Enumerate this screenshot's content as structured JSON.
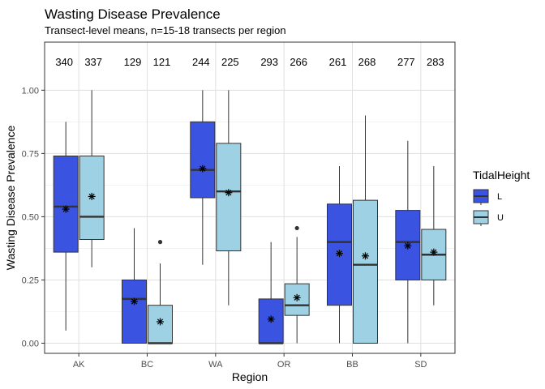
{
  "chart_data": {
    "type": "boxplot",
    "title": "Wasting Disease Prevalence",
    "subtitle": "Transect-level means, n=15-18 transects per region",
    "xlabel": "Region",
    "ylabel": "Wasting Disease Prevalence",
    "ylim": [
      -0.04,
      1.19
    ],
    "yticks": [
      0.0,
      0.25,
      0.5,
      0.75,
      1.0
    ],
    "ytick_labels": [
      "0.00",
      "0.25",
      "0.50",
      "0.75",
      "1.00"
    ],
    "grid": true,
    "legend": {
      "title": "TidalHeight",
      "position": "right",
      "items": [
        {
          "key": "L",
          "label": "L",
          "color": "#3A53E0"
        },
        {
          "key": "U",
          "label": "U",
          "color": "#9ED1E3"
        }
      ]
    },
    "categories": [
      "AK",
      "BC",
      "WA",
      "OR",
      "BB",
      "SD"
    ],
    "boxes": [
      {
        "region": "AK",
        "group": "L",
        "min": 0.05,
        "q1": 0.36,
        "median": 0.54,
        "q3": 0.74,
        "max": 0.875,
        "mean": 0.53,
        "outliers": [],
        "count": "340"
      },
      {
        "region": "AK",
        "group": "U",
        "min": 0.3,
        "q1": 0.41,
        "median": 0.5,
        "q3": 0.74,
        "max": 1.0,
        "mean": 0.58,
        "outliers": [],
        "count": "337"
      },
      {
        "region": "BC",
        "group": "L",
        "min": 0.0,
        "q1": 0.0,
        "median": 0.175,
        "q3": 0.25,
        "max": 0.455,
        "mean": 0.165,
        "outliers": [],
        "count": "129"
      },
      {
        "region": "BC",
        "group": "U",
        "min": 0.0,
        "q1": 0.0,
        "median": 0.0,
        "q3": 0.15,
        "max": 0.315,
        "mean": 0.085,
        "outliers": [
          0.4
        ],
        "count": "121"
      },
      {
        "region": "WA",
        "group": "L",
        "min": 0.31,
        "q1": 0.575,
        "median": 0.685,
        "q3": 0.875,
        "max": 1.0,
        "mean": 0.69,
        "outliers": [],
        "count": "244"
      },
      {
        "region": "WA",
        "group": "U",
        "min": 0.15,
        "q1": 0.365,
        "median": 0.6,
        "q3": 0.79,
        "max": 1.0,
        "mean": 0.595,
        "outliers": [],
        "count": "225"
      },
      {
        "region": "OR",
        "group": "L",
        "min": 0.0,
        "q1": 0.0,
        "median": 0.0,
        "q3": 0.175,
        "max": 0.4,
        "mean": 0.095,
        "outliers": [],
        "count": "293"
      },
      {
        "region": "OR",
        "group": "U",
        "min": 0.0,
        "q1": 0.11,
        "median": 0.15,
        "q3": 0.235,
        "max": 0.42,
        "mean": 0.18,
        "outliers": [
          0.455
        ],
        "count": "266"
      },
      {
        "region": "BB",
        "group": "L",
        "min": 0.0,
        "q1": 0.15,
        "median": 0.4,
        "q3": 0.55,
        "max": 0.7,
        "mean": 0.355,
        "outliers": [],
        "count": "261"
      },
      {
        "region": "BB",
        "group": "U",
        "min": 0.0,
        "q1": 0.0,
        "median": 0.31,
        "q3": 0.565,
        "max": 0.9,
        "mean": 0.345,
        "outliers": [],
        "count": "268"
      },
      {
        "region": "SD",
        "group": "L",
        "min": 0.0,
        "q1": 0.25,
        "median": 0.4,
        "q3": 0.525,
        "max": 0.8,
        "mean": 0.385,
        "outliers": [],
        "count": "277"
      },
      {
        "region": "SD",
        "group": "U",
        "min": 0.15,
        "q1": 0.25,
        "median": 0.35,
        "q3": 0.45,
        "max": 0.7,
        "mean": 0.36,
        "outliers": [],
        "count": "283"
      }
    ]
  }
}
